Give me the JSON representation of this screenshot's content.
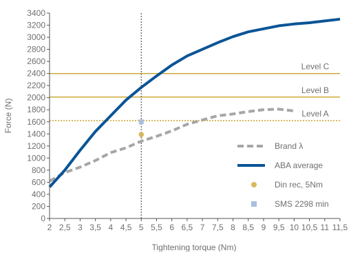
{
  "chart_data": {
    "type": "line",
    "title": "",
    "xlabel": "Tightening torque (Nm)",
    "ylabel": "Force (N)",
    "xlim": [
      2,
      11.5
    ],
    "ylim": [
      0,
      3400
    ],
    "x_ticks": [
      "2",
      "2,5",
      "3",
      "3,5",
      "4",
      "4,5",
      "5",
      "5,5",
      "6",
      "6,5",
      "7",
      "7,5",
      "8",
      "8,5",
      "9",
      "9,5",
      "10",
      "10,5",
      "11",
      "11,5"
    ],
    "y_ticks": [
      "0",
      "200",
      "400",
      "600",
      "800",
      "1000",
      "1200",
      "1400",
      "1600",
      "1800",
      "2000",
      "2200",
      "2400",
      "2600",
      "2800",
      "3000",
      "3200",
      "3400"
    ],
    "grid": false,
    "legend_position": "bottom-right",
    "series": [
      {
        "name": "Brand λ",
        "style": "dashed",
        "color": "#a6a6a6",
        "x": [
          2,
          2.5,
          3,
          3.5,
          4,
          4.5,
          5,
          5.5,
          6,
          6.5,
          7,
          7.5,
          8,
          8.5,
          9,
          9.5,
          10
        ],
        "y": [
          620,
          760,
          850,
          960,
          1090,
          1170,
          1280,
          1360,
          1450,
          1560,
          1630,
          1700,
          1730,
          1770,
          1800,
          1810,
          1780
        ]
      },
      {
        "name": "ABA average",
        "style": "solid",
        "color": "#0a5496",
        "x": [
          2,
          2.5,
          3,
          3.5,
          4,
          4.5,
          5,
          5.5,
          6,
          6.5,
          7,
          7.5,
          8,
          8.5,
          9,
          9.5,
          10,
          10.5,
          11,
          11.5
        ],
        "y": [
          520,
          800,
          1130,
          1440,
          1700,
          1960,
          2170,
          2360,
          2540,
          2690,
          2800,
          2910,
          3010,
          3090,
          3140,
          3190,
          3220,
          3240,
          3270,
          3300
        ]
      },
      {
        "name": "Din rec, 5Nm",
        "style": "point",
        "marker": "circle",
        "color": "#d9b860",
        "x": [
          5
        ],
        "y": [
          1390
        ]
      },
      {
        "name": "SMS 2298 min",
        "style": "point",
        "marker": "square",
        "color": "#a9c0de",
        "x": [
          5
        ],
        "y": [
          1600
        ]
      }
    ],
    "reference_lines": [
      {
        "label": "Level C",
        "axis": "y",
        "value": 2400,
        "style": "solid",
        "color": "#c9a227"
      },
      {
        "label": "Level B",
        "axis": "y",
        "value": 2010,
        "style": "solid",
        "color": "#c9a227"
      },
      {
        "label": "Level A",
        "axis": "y",
        "value": 1620,
        "style": "dotted",
        "color": "#c9a227"
      },
      {
        "label": "",
        "axis": "x",
        "value": 5,
        "style": "dotted",
        "color": "#555555"
      }
    ]
  }
}
